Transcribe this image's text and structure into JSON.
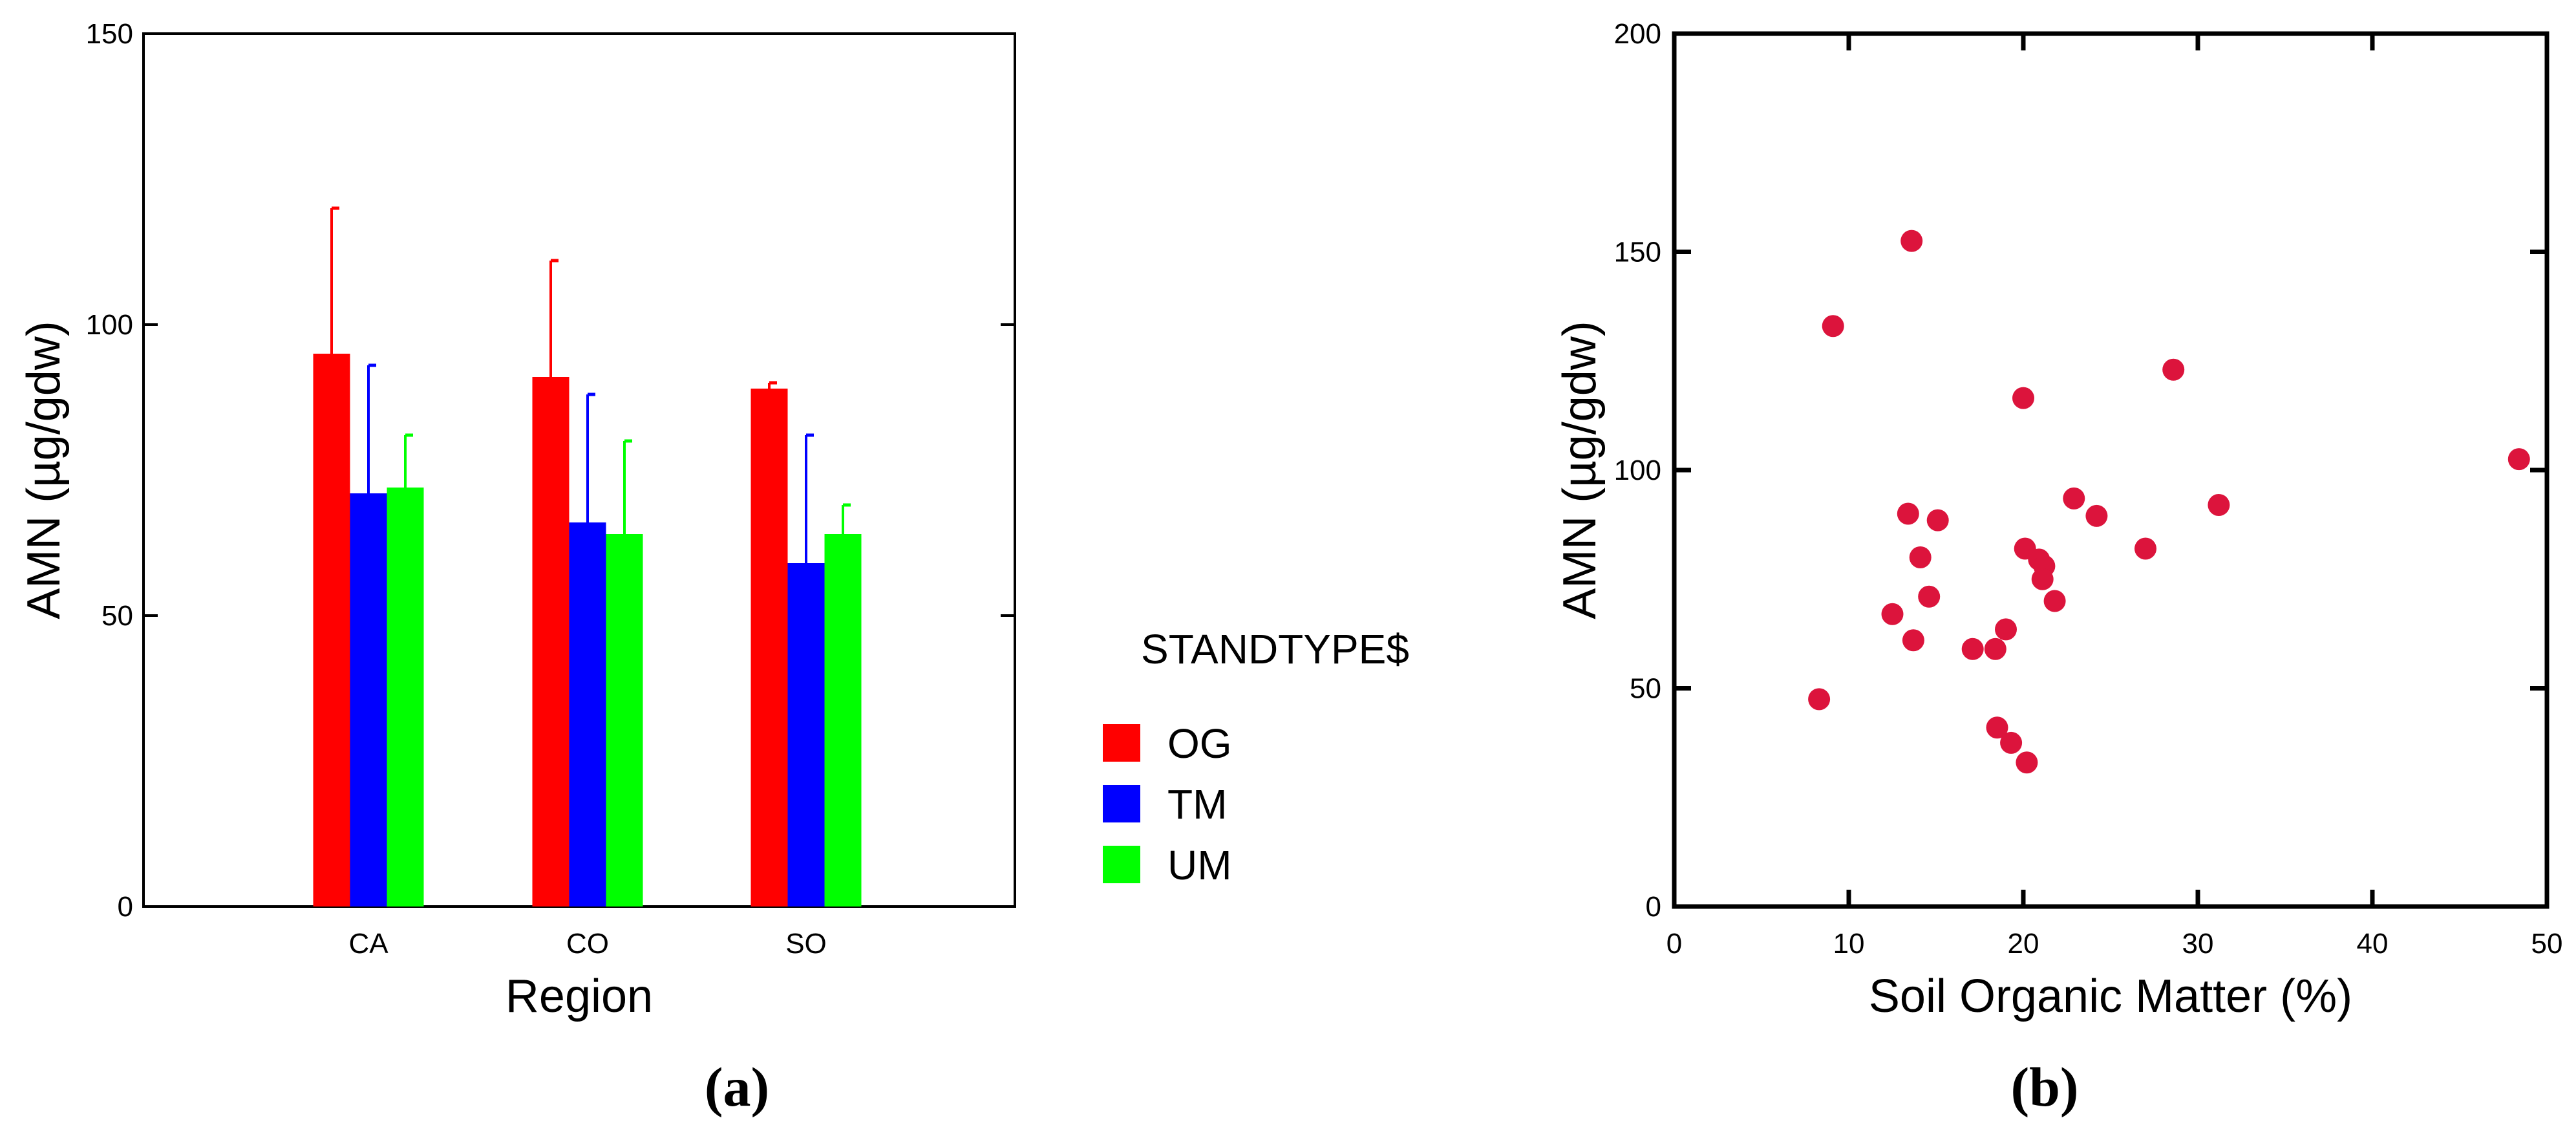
{
  "chart_data": [
    {
      "panel": "(a)",
      "type": "bar",
      "xlabel": "Region",
      "ylabel": "AMN (µg/gdw)",
      "ylim": [
        0,
        150
      ],
      "yticks": [
        0,
        50,
        100,
        150
      ],
      "categories": [
        "CA",
        "CO",
        "SO"
      ],
      "legend_title": "STANDTYPE$",
      "legend_position": "right",
      "series": [
        {
          "name": "OG",
          "color": "#ff0000",
          "values": [
            95,
            91,
            89
          ],
          "error_upper": [
            25,
            20,
            1
          ]
        },
        {
          "name": "TM",
          "color": "#0000ff",
          "values": [
            71,
            66,
            59
          ],
          "error_upper": [
            22,
            22,
            22
          ]
        },
        {
          "name": "UM",
          "color": "#00ff00",
          "values": [
            72,
            64,
            64
          ],
          "error_upper": [
            9,
            16,
            5
          ]
        }
      ]
    },
    {
      "panel": "(b)",
      "type": "scatter",
      "xlabel": "Soil Organic Matter (%)",
      "ylabel": "AMN (µg/gdw)",
      "xlim": [
        0,
        50
      ],
      "ylim": [
        0,
        200
      ],
      "xticks": [
        0,
        10,
        20,
        30,
        40,
        50
      ],
      "yticks": [
        0,
        50,
        100,
        150,
        200
      ],
      "marker_color": "#dc143c",
      "points": [
        {
          "x": 8.3,
          "y": 47.5
        },
        {
          "x": 9.1,
          "y": 133
        },
        {
          "x": 12.5,
          "y": 67
        },
        {
          "x": 13.4,
          "y": 90
        },
        {
          "x": 13.6,
          "y": 152.5
        },
        {
          "x": 13.7,
          "y": 61
        },
        {
          "x": 14.1,
          "y": 80
        },
        {
          "x": 14.6,
          "y": 71
        },
        {
          "x": 15.1,
          "y": 88.5
        },
        {
          "x": 17.1,
          "y": 59
        },
        {
          "x": 18.4,
          "y": 59
        },
        {
          "x": 18.5,
          "y": 41
        },
        {
          "x": 19.0,
          "y": 63.5
        },
        {
          "x": 19.3,
          "y": 37.5
        },
        {
          "x": 20.0,
          "y": 116.5
        },
        {
          "x": 20.1,
          "y": 82
        },
        {
          "x": 20.2,
          "y": 33
        },
        {
          "x": 20.9,
          "y": 79.5
        },
        {
          "x": 21.2,
          "y": 78
        },
        {
          "x": 21.1,
          "y": 75
        },
        {
          "x": 21.8,
          "y": 70
        },
        {
          "x": 22.9,
          "y": 93.5
        },
        {
          "x": 24.2,
          "y": 89.5
        },
        {
          "x": 27.0,
          "y": 82
        },
        {
          "x": 28.6,
          "y": 123
        },
        {
          "x": 31.2,
          "y": 92
        },
        {
          "x": 48.4,
          "y": 102.5
        }
      ]
    }
  ]
}
